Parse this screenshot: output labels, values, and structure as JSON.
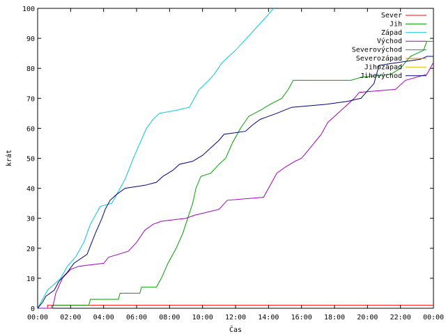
{
  "chart_data": {
    "type": "line",
    "title": "",
    "xlabel": "Čas",
    "ylabel": "krát",
    "xlim": [
      0,
      24
    ],
    "ylim": [
      0,
      100
    ],
    "x_ticks": [
      "00:00",
      "02:00",
      "04:00",
      "06:00",
      "08:00",
      "10:00",
      "12:00",
      "14:00",
      "16:00",
      "18:00",
      "20:00",
      "22:00",
      "00:00"
    ],
    "y_ticks": [
      "0",
      "10",
      "20",
      "30",
      "40",
      "50",
      "60",
      "70",
      "80",
      "90",
      "100"
    ],
    "grid": false,
    "legend_position": "top-right",
    "series": [
      {
        "name": "Sever",
        "color": "#ff0000",
        "points": [
          [
            0,
            0
          ],
          [
            0.6,
            0
          ],
          [
            0.6,
            1
          ],
          [
            24,
            1
          ]
        ]
      },
      {
        "name": "Jih",
        "color": "#00a000",
        "points": [
          [
            0,
            0
          ],
          [
            0.8,
            0
          ],
          [
            0.9,
            1
          ],
          [
            3.1,
            1
          ],
          [
            3.2,
            3
          ],
          [
            4.9,
            3
          ],
          [
            5,
            5
          ],
          [
            6.2,
            5
          ],
          [
            6.3,
            7
          ],
          [
            7.2,
            7
          ],
          [
            7.5,
            10
          ],
          [
            7.9,
            15
          ],
          [
            8.4,
            20
          ],
          [
            8.8,
            25
          ],
          [
            9.1,
            30
          ],
          [
            9.4,
            35
          ],
          [
            9.6,
            40
          ],
          [
            9.9,
            44
          ],
          [
            10.5,
            45
          ],
          [
            11,
            48
          ],
          [
            11.4,
            50
          ],
          [
            11.8,
            55
          ],
          [
            12.1,
            58
          ],
          [
            12.3,
            60
          ],
          [
            12.8,
            64
          ],
          [
            13.5,
            66
          ],
          [
            14.1,
            68
          ],
          [
            14.8,
            70
          ],
          [
            15.2,
            73
          ],
          [
            15.5,
            76
          ],
          [
            19,
            76
          ],
          [
            19.6,
            77
          ],
          [
            21.4,
            78
          ],
          [
            22,
            80
          ],
          [
            22.6,
            84
          ],
          [
            23.4,
            86
          ],
          [
            23.6,
            89
          ],
          [
            24,
            89
          ]
        ]
      },
      {
        "name": "Západ",
        "color": "#00c8e0",
        "points": [
          [
            0,
            0
          ],
          [
            0.3,
            3
          ],
          [
            0.6,
            6
          ],
          [
            1,
            8
          ],
          [
            1.4,
            10
          ],
          [
            1.8,
            14
          ],
          [
            2.3,
            17
          ],
          [
            2.8,
            22
          ],
          [
            3.2,
            28
          ],
          [
            3.6,
            32
          ],
          [
            3.8,
            34
          ],
          [
            4.5,
            35
          ],
          [
            4.9,
            39
          ],
          [
            5.3,
            43
          ],
          [
            5.8,
            50
          ],
          [
            6.2,
            55
          ],
          [
            6.6,
            60
          ],
          [
            7,
            63
          ],
          [
            7.4,
            65
          ],
          [
            8.4,
            66
          ],
          [
            9.2,
            67
          ],
          [
            9.5,
            70
          ],
          [
            9.8,
            73
          ],
          [
            10.2,
            75
          ],
          [
            10.7,
            78
          ],
          [
            11.2,
            82
          ],
          [
            11.6,
            84
          ],
          [
            12,
            86
          ],
          [
            12.5,
            89
          ],
          [
            13,
            92
          ],
          [
            13.5,
            95
          ],
          [
            14,
            98
          ],
          [
            14.3,
            100
          ]
        ]
      },
      {
        "name": "Východ",
        "color": "#a000c0",
        "points": [
          [
            0,
            0
          ],
          [
            0.9,
            0
          ],
          [
            1.1,
            5
          ],
          [
            1.5,
            10
          ],
          [
            2,
            13
          ],
          [
            2.5,
            14
          ],
          [
            4,
            15
          ],
          [
            4.3,
            17
          ],
          [
            5.5,
            19
          ],
          [
            6,
            22
          ],
          [
            6.5,
            26
          ],
          [
            7,
            28
          ],
          [
            7.5,
            29
          ],
          [
            9,
            30
          ],
          [
            9.5,
            31
          ],
          [
            11,
            33
          ],
          [
            11.5,
            36
          ],
          [
            13.7,
            37
          ],
          [
            14,
            40
          ],
          [
            14.5,
            45
          ],
          [
            15,
            47
          ],
          [
            15.6,
            49
          ],
          [
            16,
            50
          ],
          [
            16.6,
            54
          ],
          [
            17.2,
            58
          ],
          [
            17.6,
            62
          ],
          [
            18,
            64
          ],
          [
            18.6,
            67
          ],
          [
            19.2,
            70
          ],
          [
            19.5,
            72
          ],
          [
            21.7,
            73
          ],
          [
            22.3,
            76
          ],
          [
            23.6,
            78
          ],
          [
            24,
            82
          ]
        ]
      },
      {
        "name": "Severovýchod",
        "color": "#00a060",
        "points": []
      },
      {
        "name": "Severozápad",
        "color": "#c08000",
        "points": []
      },
      {
        "name": "Jihozápad",
        "color": "#e0c000",
        "points": []
      },
      {
        "name": "Jihovýchod",
        "color": "#000080",
        "points": [
          [
            0,
            0
          ],
          [
            0.3,
            2
          ],
          [
            0.5,
            4
          ],
          [
            1,
            6
          ],
          [
            1.3,
            9
          ],
          [
            1.8,
            12
          ],
          [
            2.2,
            15
          ],
          [
            3,
            18
          ],
          [
            3.5,
            25
          ],
          [
            3.9,
            30
          ],
          [
            4.1,
            33
          ],
          [
            4.4,
            36
          ],
          [
            4.8,
            38
          ],
          [
            5.3,
            40
          ],
          [
            6.5,
            41
          ],
          [
            7.2,
            42
          ],
          [
            7.6,
            44
          ],
          [
            8.2,
            46
          ],
          [
            8.6,
            48
          ],
          [
            9.4,
            49
          ],
          [
            10,
            51
          ],
          [
            10.6,
            54
          ],
          [
            11,
            56
          ],
          [
            11.3,
            58
          ],
          [
            12.6,
            59
          ],
          [
            13,
            61
          ],
          [
            13.5,
            63
          ],
          [
            14.5,
            65
          ],
          [
            15.4,
            67
          ],
          [
            17.5,
            68
          ],
          [
            18.8,
            69
          ],
          [
            19.6,
            70
          ],
          [
            20.4,
            75
          ],
          [
            20.7,
            81
          ],
          [
            21.9,
            82
          ],
          [
            23.2,
            83
          ],
          [
            23.6,
            84
          ],
          [
            24,
            84
          ]
        ]
      }
    ]
  }
}
